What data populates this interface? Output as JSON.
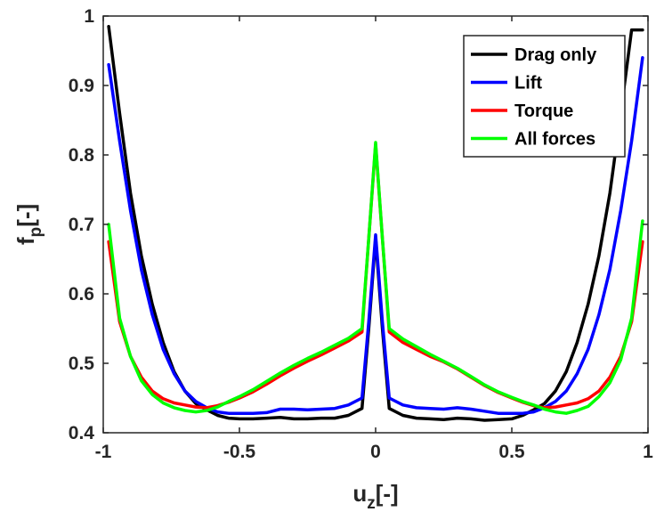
{
  "chart_data": {
    "type": "line",
    "xlabel": "u",
    "xlabel_sub": "z",
    "xlabel_unit": "[-]",
    "ylabel": "f",
    "ylabel_sub": "p",
    "ylabel_unit": "[-]",
    "xlim": [
      -1,
      1
    ],
    "ylim": [
      0.4,
      1
    ],
    "xticks": [
      -1,
      -0.5,
      0,
      0.5,
      1
    ],
    "xtick_labels": [
      "-1",
      "-0.5",
      "0",
      "0.5",
      "1"
    ],
    "yticks": [
      0.4,
      0.5,
      0.6,
      0.7,
      0.8,
      0.9,
      1
    ],
    "ytick_labels": [
      "0.4",
      "0.5",
      "0.6",
      "0.7",
      "0.8",
      "0.9",
      "1"
    ],
    "grid": false,
    "legend_position": "top-right",
    "series": [
      {
        "name": "Drag only",
        "color": "#000000",
        "x": [
          -0.98,
          -0.94,
          -0.9,
          -0.86,
          -0.82,
          -0.78,
          -0.74,
          -0.7,
          -0.66,
          -0.62,
          -0.58,
          -0.54,
          -0.5,
          -0.45,
          -0.4,
          -0.35,
          -0.3,
          -0.25,
          -0.2,
          -0.15,
          -0.1,
          -0.05,
          -0.025,
          0,
          0.025,
          0.05,
          0.1,
          0.15,
          0.2,
          0.25,
          0.3,
          0.35,
          0.4,
          0.45,
          0.5,
          0.54,
          0.58,
          0.62,
          0.66,
          0.7,
          0.74,
          0.78,
          0.82,
          0.86,
          0.9,
          0.94,
          0.98
        ],
        "y": [
          0.985,
          0.86,
          0.745,
          0.655,
          0.585,
          0.53,
          0.488,
          0.46,
          0.442,
          0.433,
          0.425,
          0.421,
          0.42,
          0.42,
          0.421,
          0.422,
          0.42,
          0.42,
          0.421,
          0.421,
          0.425,
          0.435,
          0.55,
          0.68,
          0.55,
          0.435,
          0.425,
          0.421,
          0.42,
          0.419,
          0.421,
          0.42,
          0.418,
          0.419,
          0.42,
          0.425,
          0.433,
          0.442,
          0.46,
          0.488,
          0.53,
          0.585,
          0.655,
          0.745,
          0.86,
          0.98,
          0.98
        ]
      },
      {
        "name": "Lift",
        "color": "#0000ff",
        "x": [
          -0.98,
          -0.94,
          -0.9,
          -0.86,
          -0.82,
          -0.78,
          -0.74,
          -0.7,
          -0.66,
          -0.62,
          -0.58,
          -0.54,
          -0.5,
          -0.45,
          -0.4,
          -0.35,
          -0.3,
          -0.25,
          -0.2,
          -0.15,
          -0.1,
          -0.05,
          -0.025,
          0,
          0.025,
          0.05,
          0.1,
          0.15,
          0.2,
          0.25,
          0.3,
          0.35,
          0.4,
          0.45,
          0.5,
          0.54,
          0.58,
          0.62,
          0.66,
          0.7,
          0.74,
          0.78,
          0.82,
          0.86,
          0.9,
          0.94,
          0.98
        ],
        "y": [
          0.93,
          0.82,
          0.72,
          0.635,
          0.57,
          0.52,
          0.485,
          0.46,
          0.445,
          0.436,
          0.43,
          0.428,
          0.428,
          0.428,
          0.429,
          0.434,
          0.434,
          0.433,
          0.434,
          0.435,
          0.44,
          0.45,
          0.56,
          0.685,
          0.56,
          0.45,
          0.44,
          0.436,
          0.435,
          0.434,
          0.436,
          0.434,
          0.431,
          0.428,
          0.428,
          0.428,
          0.43,
          0.436,
          0.445,
          0.46,
          0.485,
          0.52,
          0.57,
          0.635,
          0.72,
          0.82,
          0.94
        ]
      },
      {
        "name": "Torque",
        "color": "#ff0000",
        "x": [
          -0.98,
          -0.94,
          -0.9,
          -0.86,
          -0.82,
          -0.78,
          -0.74,
          -0.7,
          -0.66,
          -0.62,
          -0.58,
          -0.54,
          -0.5,
          -0.45,
          -0.4,
          -0.35,
          -0.3,
          -0.25,
          -0.2,
          -0.15,
          -0.1,
          -0.05,
          -0.025,
          0,
          0.025,
          0.05,
          0.1,
          0.15,
          0.2,
          0.25,
          0.3,
          0.35,
          0.4,
          0.45,
          0.5,
          0.54,
          0.58,
          0.62,
          0.66,
          0.7,
          0.74,
          0.78,
          0.82,
          0.86,
          0.9,
          0.94,
          0.98
        ],
        "y": [
          0.675,
          0.56,
          0.51,
          0.48,
          0.46,
          0.449,
          0.443,
          0.44,
          0.437,
          0.436,
          0.439,
          0.444,
          0.45,
          0.459,
          0.47,
          0.482,
          0.493,
          0.503,
          0.512,
          0.522,
          0.532,
          0.545,
          0.68,
          0.815,
          0.68,
          0.545,
          0.53,
          0.52,
          0.51,
          0.502,
          0.492,
          0.48,
          0.468,
          0.458,
          0.45,
          0.444,
          0.439,
          0.436,
          0.437,
          0.44,
          0.443,
          0.449,
          0.46,
          0.48,
          0.51,
          0.56,
          0.675
        ]
      },
      {
        "name": "All forces",
        "color": "#00ff00",
        "x": [
          -0.98,
          -0.94,
          -0.9,
          -0.86,
          -0.82,
          -0.78,
          -0.74,
          -0.7,
          -0.66,
          -0.62,
          -0.58,
          -0.54,
          -0.5,
          -0.45,
          -0.4,
          -0.35,
          -0.3,
          -0.25,
          -0.2,
          -0.15,
          -0.1,
          -0.05,
          -0.025,
          0,
          0.025,
          0.05,
          0.1,
          0.15,
          0.2,
          0.25,
          0.3,
          0.35,
          0.4,
          0.45,
          0.5,
          0.54,
          0.58,
          0.62,
          0.66,
          0.7,
          0.74,
          0.78,
          0.82,
          0.86,
          0.9,
          0.94,
          0.98
        ],
        "y": [
          0.7,
          0.565,
          0.51,
          0.475,
          0.455,
          0.443,
          0.436,
          0.432,
          0.43,
          0.432,
          0.437,
          0.445,
          0.452,
          0.462,
          0.474,
          0.486,
          0.497,
          0.507,
          0.516,
          0.526,
          0.536,
          0.55,
          0.68,
          0.818,
          0.68,
          0.55,
          0.535,
          0.524,
          0.513,
          0.503,
          0.493,
          0.481,
          0.469,
          0.459,
          0.451,
          0.445,
          0.44,
          0.434,
          0.43,
          0.428,
          0.432,
          0.438,
          0.452,
          0.472,
          0.505,
          0.565,
          0.705
        ]
      }
    ]
  }
}
